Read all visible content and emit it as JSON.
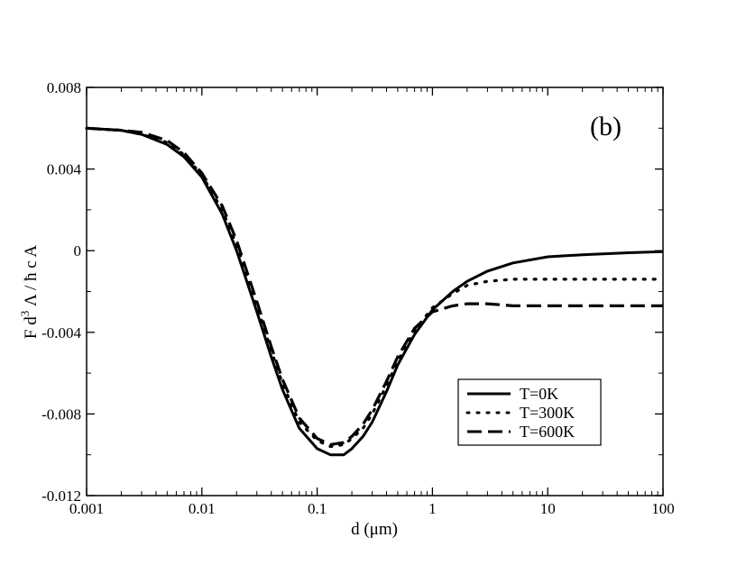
{
  "chart_data": {
    "type": "line",
    "title": "",
    "annotation": "(b)",
    "xlabel": "d (μm)",
    "ylabel_parts": {
      "base": "F d",
      "sup": "3",
      "rest": " Λ / ħ c A"
    },
    "x_scale": "log",
    "xlim": [
      0.001,
      100
    ],
    "ylim": [
      -0.012,
      0.008
    ],
    "x_ticks": [
      0.001,
      0.01,
      0.1,
      1,
      10,
      100
    ],
    "x_tick_labels": [
      "0.001",
      "0.01",
      "0.1",
      "1",
      "10",
      "100"
    ],
    "y_ticks": [
      -0.012,
      -0.008,
      -0.004,
      0,
      0.004,
      0.008
    ],
    "y_tick_labels": [
      "-0.012",
      "-0.008",
      "-0.004",
      "0",
      "0.004",
      "0.008"
    ],
    "grid": false,
    "legend_position": "lower-right",
    "series": [
      {
        "name": "T=0K",
        "style": "solid",
        "x": [
          0.001,
          0.002,
          0.003,
          0.005,
          0.007,
          0.01,
          0.015,
          0.02,
          0.03,
          0.04,
          0.05,
          0.07,
          0.1,
          0.13,
          0.17,
          0.2,
          0.25,
          0.3,
          0.4,
          0.5,
          0.7,
          1,
          1.5,
          2,
          3,
          5,
          10,
          20,
          50,
          100
        ],
        "y": [
          0.006,
          0.0059,
          0.0057,
          0.0052,
          0.0046,
          0.0036,
          0.0018,
          0.0,
          -0.003,
          -0.0052,
          -0.0068,
          -0.0087,
          -0.0097,
          -0.01,
          -0.01,
          -0.0097,
          -0.0091,
          -0.0084,
          -0.0069,
          -0.0056,
          -0.0041,
          -0.0029,
          -0.002,
          -0.0015,
          -0.001,
          -0.0006,
          -0.0003,
          -0.0002,
          -0.0001,
          -5e-05
        ]
      },
      {
        "name": "T=300K",
        "style": "dotted",
        "x": [
          0.001,
          0.002,
          0.003,
          0.005,
          0.007,
          0.01,
          0.015,
          0.02,
          0.03,
          0.04,
          0.05,
          0.07,
          0.1,
          0.13,
          0.17,
          0.2,
          0.25,
          0.3,
          0.4,
          0.5,
          0.7,
          1,
          1.5,
          2,
          3,
          5,
          10,
          20,
          50,
          100
        ],
        "y": [
          0.006,
          0.0059,
          0.0057,
          0.0053,
          0.0047,
          0.0037,
          0.002,
          0.0003,
          -0.0027,
          -0.0049,
          -0.0065,
          -0.0084,
          -0.0093,
          -0.0096,
          -0.0095,
          -0.0092,
          -0.0087,
          -0.008,
          -0.0066,
          -0.0054,
          -0.0039,
          -0.0028,
          -0.0021,
          -0.0017,
          -0.0015,
          -0.0014,
          -0.0014,
          -0.0014,
          -0.0014,
          -0.0014
        ]
      },
      {
        "name": "T=600K",
        "style": "dashed",
        "x": [
          0.001,
          0.002,
          0.003,
          0.005,
          0.007,
          0.01,
          0.015,
          0.02,
          0.03,
          0.04,
          0.05,
          0.07,
          0.1,
          0.13,
          0.17,
          0.2,
          0.25,
          0.3,
          0.4,
          0.5,
          0.7,
          1,
          1.5,
          2,
          3,
          5,
          10,
          20,
          50,
          100
        ],
        "y": [
          0.006,
          0.0059,
          0.0058,
          0.0054,
          0.0048,
          0.0038,
          0.0022,
          0.0005,
          -0.0025,
          -0.0047,
          -0.0063,
          -0.0082,
          -0.0092,
          -0.0095,
          -0.0094,
          -0.0091,
          -0.0085,
          -0.0078,
          -0.0064,
          -0.0052,
          -0.0038,
          -0.003,
          -0.0027,
          -0.0026,
          -0.0026,
          -0.0027,
          -0.0027,
          -0.0027,
          -0.0027,
          -0.0027
        ]
      }
    ]
  }
}
